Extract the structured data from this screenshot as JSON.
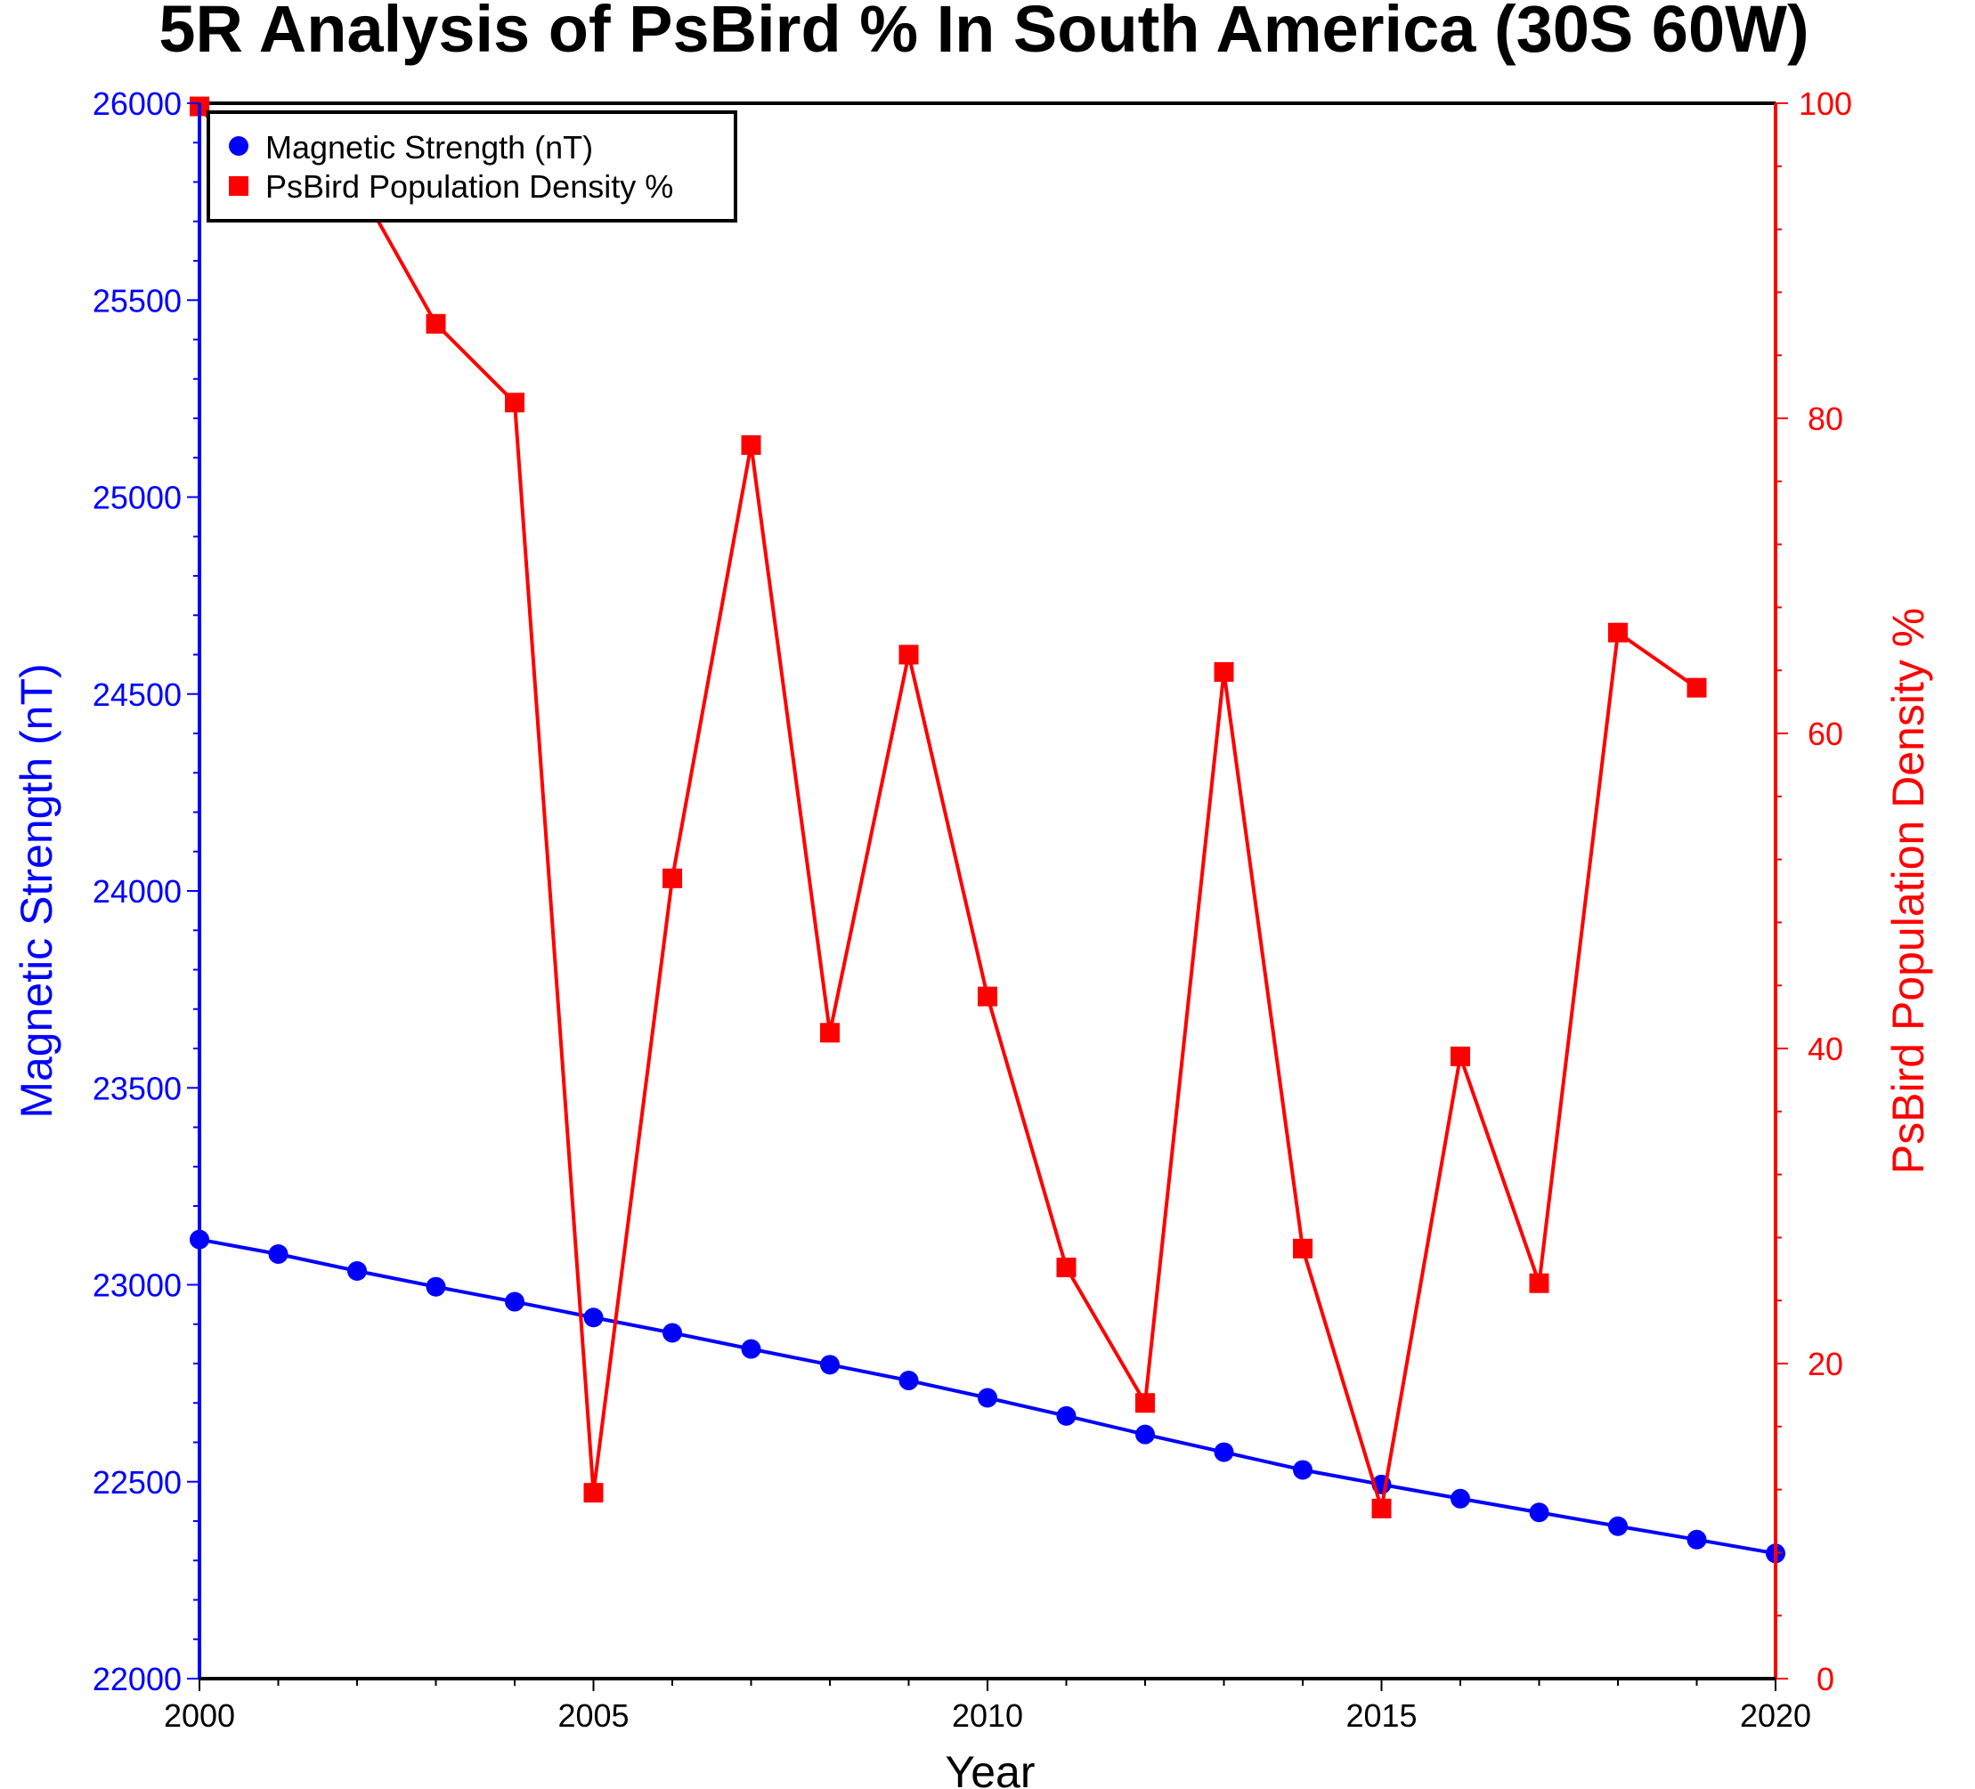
{
  "chart_data": {
    "type": "line",
    "title": "5R Analysis of PsBird % In South America (30S 60W)",
    "xlabel": "Year",
    "ylabel_left": "Magnetic Strength (nT)",
    "ylabel_right": "PsBird Population Density %",
    "xlim": [
      2000,
      2020
    ],
    "ylim_left": [
      22000,
      26000
    ],
    "ylim_right": [
      0,
      100
    ],
    "x_ticks": [
      "2000",
      "2005",
      "2010",
      "2015",
      "2020"
    ],
    "y_left_ticks": [
      "22000",
      "22500",
      "23000",
      "23500",
      "24000",
      "24500",
      "25000",
      "25500",
      "26000"
    ],
    "y_right_ticks": [
      "0",
      "20",
      "40",
      "60",
      "80",
      "100"
    ],
    "legend_position": "top-left",
    "grid": false,
    "series": [
      {
        "name": "Magnetic Strength (nT)",
        "axis": "left",
        "marker": "circle",
        "color": "#0000ff",
        "x": [
          2000,
          2001,
          2002,
          2003,
          2004,
          2005,
          2006,
          2007,
          2008,
          2009,
          2010,
          2011,
          2012,
          2013,
          2014,
          2015,
          2016,
          2017,
          2018,
          2019,
          2020
        ],
        "values": [
          23115,
          23078,
          23035,
          22995,
          22957,
          22917,
          22878,
          22837,
          22797,
          22757,
          22713,
          22667,
          22620,
          22575,
          22530,
          22493,
          22457,
          22422,
          22387,
          22353,
          22318
        ]
      },
      {
        "name": "PsBird Population Density %",
        "axis": "right",
        "marker": "square",
        "color": "#ff0000",
        "x": [
          2000,
          2001,
          2002,
          2003,
          2004,
          2005,
          2006,
          2007,
          2008,
          2009,
          2010,
          2011,
          2012,
          2013,
          2014,
          2015,
          2016,
          2017,
          2018,
          2019
        ],
        "values": [
          99.8,
          93.5,
          94.9,
          86.0,
          81.0,
          11.8,
          50.8,
          78.3,
          41.0,
          65.0,
          43.3,
          26.1,
          17.5,
          63.9,
          27.3,
          10.8,
          39.5,
          25.1,
          66.4,
          62.9
        ]
      }
    ]
  }
}
